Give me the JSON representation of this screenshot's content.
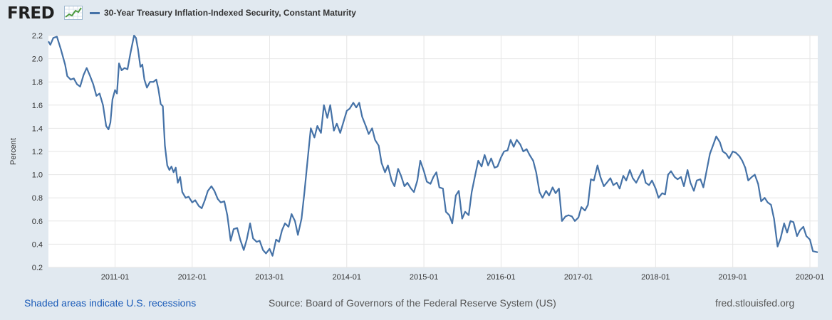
{
  "header": {
    "logo_text": "FRED",
    "logo_icon": "line-graph-icon",
    "legend_label": "30-Year Treasury Inflation-Indexed Security, Constant Maturity",
    "legend_color": "#4572a7"
  },
  "footer": {
    "recessions_note": "Shaded areas indicate U.S. recessions",
    "source": "Source: Board of Governors of the Federal Reserve System (US)",
    "site": "fred.stlouisfed.org"
  },
  "chart_data": {
    "type": "line",
    "ylabel": "Percent",
    "xlabel": "",
    "ylim": [
      0.2,
      2.2
    ],
    "yticks": [
      "0.2",
      "0.4",
      "0.6",
      "0.8",
      "1.0",
      "1.2",
      "1.4",
      "1.6",
      "1.8",
      "2.0",
      "2.2"
    ],
    "xlim": [
      "2010-02-20",
      "2020-02-07"
    ],
    "xticks": [
      "2011-01",
      "2012-01",
      "2013-01",
      "2014-01",
      "2015-01",
      "2016-01",
      "2017-01",
      "2018-01",
      "2019-01",
      "2020-01"
    ],
    "grid": true,
    "legend_position": "top-left",
    "series": [
      {
        "name": "30-Year Treasury Inflation-Indexed Security, Constant Maturity",
        "color": "#4572a7",
        "points": [
          [
            "2010-02-20",
            2.15
          ],
          [
            "2010-03-01",
            2.12
          ],
          [
            "2010-03-15",
            2.18
          ],
          [
            "2010-04-01",
            2.19
          ],
          [
            "2010-04-20",
            2.08
          ],
          [
            "2010-05-10",
            1.95
          ],
          [
            "2010-05-20",
            1.85
          ],
          [
            "2010-06-05",
            1.82
          ],
          [
            "2010-06-20",
            1.83
          ],
          [
            "2010-07-05",
            1.78
          ],
          [
            "2010-07-20",
            1.76
          ],
          [
            "2010-08-05",
            1.86
          ],
          [
            "2010-08-20",
            1.92
          ],
          [
            "2010-09-05",
            1.85
          ],
          [
            "2010-09-20",
            1.78
          ],
          [
            "2010-10-05",
            1.68
          ],
          [
            "2010-10-20",
            1.7
          ],
          [
            "2010-11-05",
            1.6
          ],
          [
            "2010-11-20",
            1.42
          ],
          [
            "2010-12-01",
            1.39
          ],
          [
            "2010-12-10",
            1.45
          ],
          [
            "2010-12-20",
            1.65
          ],
          [
            "2011-01-01",
            1.73
          ],
          [
            "2011-01-10",
            1.7
          ],
          [
            "2011-01-20",
            1.96
          ],
          [
            "2011-02-01",
            1.9
          ],
          [
            "2011-02-15",
            1.92
          ],
          [
            "2011-03-01",
            1.91
          ],
          [
            "2011-03-15",
            2.05
          ],
          [
            "2011-04-01",
            2.2
          ],
          [
            "2011-04-10",
            2.18
          ],
          [
            "2011-04-20",
            2.08
          ],
          [
            "2011-05-01",
            1.93
          ],
          [
            "2011-05-10",
            1.95
          ],
          [
            "2011-05-20",
            1.82
          ],
          [
            "2011-06-01",
            1.75
          ],
          [
            "2011-06-15",
            1.8
          ],
          [
            "2011-07-01",
            1.8
          ],
          [
            "2011-07-15",
            1.82
          ],
          [
            "2011-07-25",
            1.74
          ],
          [
            "2011-08-05",
            1.61
          ],
          [
            "2011-08-15",
            1.59
          ],
          [
            "2011-08-25",
            1.25
          ],
          [
            "2011-09-05",
            1.08
          ],
          [
            "2011-09-15",
            1.04
          ],
          [
            "2011-09-25",
            1.07
          ],
          [
            "2011-10-05",
            1.02
          ],
          [
            "2011-10-15",
            1.06
          ],
          [
            "2011-10-25",
            0.93
          ],
          [
            "2011-11-05",
            0.98
          ],
          [
            "2011-11-15",
            0.85
          ],
          [
            "2011-12-01",
            0.8
          ],
          [
            "2011-12-15",
            0.81
          ],
          [
            "2012-01-01",
            0.76
          ],
          [
            "2012-01-15",
            0.78
          ],
          [
            "2012-02-01",
            0.73
          ],
          [
            "2012-02-15",
            0.71
          ],
          [
            "2012-03-01",
            0.78
          ],
          [
            "2012-03-15",
            0.86
          ],
          [
            "2012-04-01",
            0.9
          ],
          [
            "2012-04-15",
            0.86
          ],
          [
            "2012-05-01",
            0.79
          ],
          [
            "2012-05-15",
            0.76
          ],
          [
            "2012-06-01",
            0.77
          ],
          [
            "2012-06-15",
            0.65
          ],
          [
            "2012-07-01",
            0.43
          ],
          [
            "2012-07-15",
            0.53
          ],
          [
            "2012-08-01",
            0.54
          ],
          [
            "2012-08-15",
            0.44
          ],
          [
            "2012-09-01",
            0.35
          ],
          [
            "2012-09-15",
            0.44
          ],
          [
            "2012-10-01",
            0.58
          ],
          [
            "2012-10-15",
            0.45
          ],
          [
            "2012-11-01",
            0.42
          ],
          [
            "2012-11-15",
            0.43
          ],
          [
            "2012-12-01",
            0.35
          ],
          [
            "2012-12-15",
            0.32
          ],
          [
            "2013-01-01",
            0.36
          ],
          [
            "2013-01-15",
            0.3
          ],
          [
            "2013-02-01",
            0.44
          ],
          [
            "2013-02-15",
            0.42
          ],
          [
            "2013-03-01",
            0.52
          ],
          [
            "2013-03-15",
            0.58
          ],
          [
            "2013-04-01",
            0.55
          ],
          [
            "2013-04-15",
            0.66
          ],
          [
            "2013-05-01",
            0.6
          ],
          [
            "2013-05-15",
            0.48
          ],
          [
            "2013-06-01",
            0.62
          ],
          [
            "2013-06-15",
            0.85
          ],
          [
            "2013-07-01",
            1.15
          ],
          [
            "2013-07-15",
            1.4
          ],
          [
            "2013-08-01",
            1.32
          ],
          [
            "2013-08-15",
            1.42
          ],
          [
            "2013-09-01",
            1.36
          ],
          [
            "2013-09-15",
            1.6
          ],
          [
            "2013-10-01",
            1.49
          ],
          [
            "2013-10-15",
            1.6
          ],
          [
            "2013-11-01",
            1.38
          ],
          [
            "2013-11-15",
            1.44
          ],
          [
            "2013-12-01",
            1.36
          ],
          [
            "2014-01-01",
            1.55
          ],
          [
            "2014-01-15",
            1.57
          ],
          [
            "2014-02-01",
            1.62
          ],
          [
            "2014-02-15",
            1.58
          ],
          [
            "2014-03-01",
            1.62
          ],
          [
            "2014-03-15",
            1.5
          ],
          [
            "2014-04-01",
            1.42
          ],
          [
            "2014-04-15",
            1.35
          ],
          [
            "2014-05-01",
            1.4
          ],
          [
            "2014-05-15",
            1.3
          ],
          [
            "2014-06-01",
            1.25
          ],
          [
            "2014-06-15",
            1.1
          ],
          [
            "2014-07-01",
            1.02
          ],
          [
            "2014-07-15",
            1.08
          ],
          [
            "2014-08-01",
            0.95
          ],
          [
            "2014-08-15",
            0.9
          ],
          [
            "2014-09-01",
            1.05
          ],
          [
            "2014-09-15",
            0.99
          ],
          [
            "2014-10-01",
            0.9
          ],
          [
            "2014-10-15",
            0.93
          ],
          [
            "2014-11-01",
            0.88
          ],
          [
            "2014-11-15",
            0.85
          ],
          [
            "2014-12-01",
            0.95
          ],
          [
            "2014-12-15",
            1.12
          ],
          [
            "2015-01-01",
            1.03
          ],
          [
            "2015-01-15",
            0.94
          ],
          [
            "2015-02-01",
            0.92
          ],
          [
            "2015-02-15",
            0.98
          ],
          [
            "2015-03-01",
            1.02
          ],
          [
            "2015-03-15",
            0.89
          ],
          [
            "2015-04-01",
            0.88
          ],
          [
            "2015-04-15",
            0.68
          ],
          [
            "2015-05-01",
            0.65
          ],
          [
            "2015-05-15",
            0.58
          ],
          [
            "2015-06-01",
            0.82
          ],
          [
            "2015-06-15",
            0.86
          ],
          [
            "2015-07-01",
            0.62
          ],
          [
            "2015-07-15",
            0.68
          ],
          [
            "2015-08-01",
            0.65
          ],
          [
            "2015-08-15",
            0.85
          ],
          [
            "2015-09-01",
            1.0
          ],
          [
            "2015-09-15",
            1.12
          ],
          [
            "2015-10-01",
            1.07
          ],
          [
            "2015-10-15",
            1.17
          ],
          [
            "2015-11-01",
            1.08
          ],
          [
            "2015-11-15",
            1.14
          ],
          [
            "2015-12-01",
            1.06
          ],
          [
            "2015-12-15",
            1.07
          ],
          [
            "2016-01-01",
            1.15
          ],
          [
            "2016-01-15",
            1.2
          ],
          [
            "2016-02-01",
            1.21
          ],
          [
            "2016-02-15",
            1.3
          ],
          [
            "2016-03-01",
            1.24
          ],
          [
            "2016-03-15",
            1.3
          ],
          [
            "2016-04-01",
            1.26
          ],
          [
            "2016-04-15",
            1.2
          ],
          [
            "2016-05-01",
            1.22
          ],
          [
            "2016-05-15",
            1.17
          ],
          [
            "2016-06-01",
            1.12
          ],
          [
            "2016-06-15",
            1.02
          ],
          [
            "2016-07-01",
            0.85
          ],
          [
            "2016-07-15",
            0.8
          ],
          [
            "2016-08-01",
            0.86
          ],
          [
            "2016-08-15",
            0.82
          ],
          [
            "2016-09-01",
            0.89
          ],
          [
            "2016-09-15",
            0.84
          ],
          [
            "2016-10-01",
            0.88
          ],
          [
            "2016-10-15",
            0.6
          ],
          [
            "2016-11-01",
            0.64
          ],
          [
            "2016-11-15",
            0.65
          ],
          [
            "2016-12-01",
            0.64
          ],
          [
            "2016-12-15",
            0.6
          ],
          [
            "2017-01-01",
            0.63
          ],
          [
            "2017-01-15",
            0.72
          ],
          [
            "2017-02-01",
            0.69
          ],
          [
            "2017-02-15",
            0.74
          ],
          [
            "2017-03-01",
            0.96
          ],
          [
            "2017-03-15",
            0.95
          ],
          [
            "2017-04-01",
            1.08
          ],
          [
            "2017-04-15",
            0.98
          ],
          [
            "2017-05-01",
            0.9
          ],
          [
            "2017-05-15",
            0.93
          ],
          [
            "2017-06-01",
            0.97
          ],
          [
            "2017-06-15",
            0.91
          ],
          [
            "2017-07-01",
            0.93
          ],
          [
            "2017-07-15",
            0.88
          ],
          [
            "2017-08-01",
            0.99
          ],
          [
            "2017-08-15",
            0.95
          ],
          [
            "2017-09-01",
            1.04
          ],
          [
            "2017-09-15",
            0.97
          ],
          [
            "2017-10-01",
            0.93
          ],
          [
            "2017-10-15",
            0.98
          ],
          [
            "2017-11-01",
            1.04
          ],
          [
            "2017-11-15",
            0.93
          ],
          [
            "2017-12-01",
            0.91
          ],
          [
            "2017-12-15",
            0.95
          ],
          [
            "2018-01-01",
            0.88
          ],
          [
            "2018-01-15",
            0.8
          ],
          [
            "2018-02-01",
            0.84
          ],
          [
            "2018-02-15",
            0.83
          ],
          [
            "2018-03-01",
            1.0
          ],
          [
            "2018-03-15",
            1.03
          ],
          [
            "2018-04-01",
            0.98
          ],
          [
            "2018-04-15",
            0.96
          ],
          [
            "2018-05-01",
            0.98
          ],
          [
            "2018-05-15",
            0.9
          ],
          [
            "2018-06-01",
            1.04
          ],
          [
            "2018-06-15",
            0.93
          ],
          [
            "2018-07-01",
            0.86
          ],
          [
            "2018-07-15",
            0.95
          ],
          [
            "2018-08-01",
            0.96
          ],
          [
            "2018-08-15",
            0.89
          ],
          [
            "2018-09-01",
            1.05
          ],
          [
            "2018-09-15",
            1.18
          ],
          [
            "2018-10-01",
            1.26
          ],
          [
            "2018-10-15",
            1.33
          ],
          [
            "2018-11-01",
            1.28
          ],
          [
            "2018-11-15",
            1.2
          ],
          [
            "2018-12-01",
            1.18
          ],
          [
            "2018-12-15",
            1.14
          ],
          [
            "2019-01-01",
            1.2
          ],
          [
            "2019-01-15",
            1.19
          ],
          [
            "2019-02-01",
            1.16
          ],
          [
            "2019-02-15",
            1.12
          ],
          [
            "2019-03-01",
            1.06
          ],
          [
            "2019-03-15",
            0.95
          ],
          [
            "2019-04-01",
            0.98
          ],
          [
            "2019-04-15",
            1.0
          ],
          [
            "2019-05-01",
            0.92
          ],
          [
            "2019-05-15",
            0.77
          ],
          [
            "2019-06-01",
            0.8
          ],
          [
            "2019-06-15",
            0.76
          ],
          [
            "2019-07-01",
            0.74
          ],
          [
            "2019-07-15",
            0.62
          ],
          [
            "2019-08-01",
            0.38
          ],
          [
            "2019-08-15",
            0.45
          ],
          [
            "2019-09-01",
            0.58
          ],
          [
            "2019-09-15",
            0.5
          ],
          [
            "2019-10-01",
            0.6
          ],
          [
            "2019-10-15",
            0.59
          ],
          [
            "2019-11-01",
            0.47
          ],
          [
            "2019-11-15",
            0.52
          ],
          [
            "2019-12-01",
            0.55
          ],
          [
            "2019-12-15",
            0.47
          ],
          [
            "2020-01-01",
            0.44
          ],
          [
            "2020-01-15",
            0.34
          ],
          [
            "2020-02-07",
            0.33
          ]
        ]
      }
    ]
  }
}
